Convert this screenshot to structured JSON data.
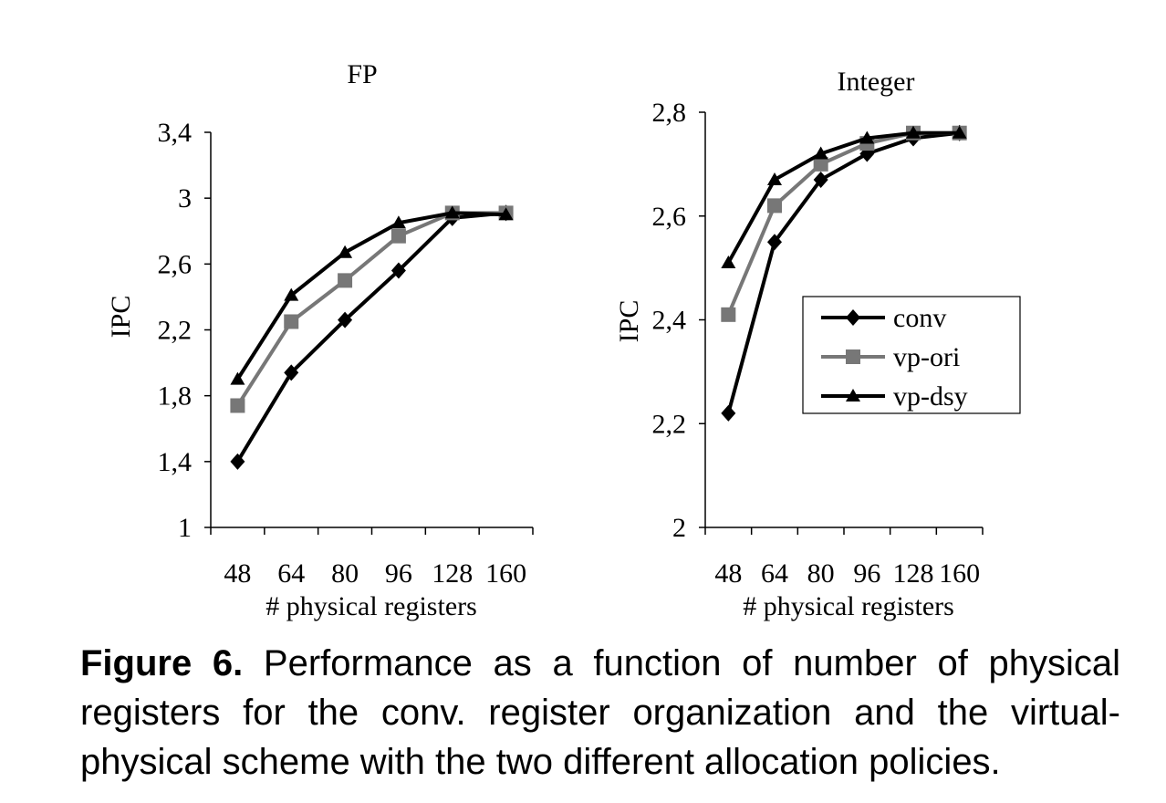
{
  "chart_data": [
    {
      "type": "line",
      "title": "FP",
      "xlabel": "# physical registers",
      "ylabel": "IPC",
      "categories": [
        "48",
        "64",
        "80",
        "96",
        "128",
        "160"
      ],
      "ylim": [
        1,
        3.4
      ],
      "yticks": [
        "1",
        "1,4",
        "1,8",
        "2,2",
        "2,6",
        "3",
        "3,4"
      ],
      "ytick_values": [
        1,
        1.4,
        1.8,
        2.2,
        2.6,
        3.0,
        3.4
      ],
      "grid": false,
      "series": [
        {
          "name": "conv",
          "values": [
            1.4,
            1.94,
            2.26,
            2.56,
            2.88,
            2.91
          ],
          "color": "#000000",
          "marker": "diamond"
        },
        {
          "name": "vp-ori",
          "values": [
            1.74,
            2.25,
            2.5,
            2.77,
            2.91,
            2.91
          ],
          "color": "#777777",
          "marker": "square"
        },
        {
          "name": "vp-dsy",
          "values": [
            1.9,
            2.41,
            2.67,
            2.85,
            2.91,
            2.9
          ],
          "color": "#000000",
          "marker": "triangle"
        }
      ]
    },
    {
      "type": "line",
      "title": "Integer",
      "xlabel": "# physical registers",
      "ylabel": "IPC",
      "categories": [
        "48",
        "64",
        "80",
        "96",
        "128",
        "160"
      ],
      "ylim": [
        2,
        2.8
      ],
      "yticks": [
        "2",
        "2,2",
        "2,4",
        "2,6",
        "2,8"
      ],
      "ytick_values": [
        2.0,
        2.2,
        2.4,
        2.6,
        2.8
      ],
      "grid": false,
      "legend_position": "center-right",
      "series": [
        {
          "name": "conv",
          "values": [
            2.22,
            2.55,
            2.67,
            2.72,
            2.75,
            2.76
          ],
          "color": "#000000",
          "marker": "diamond"
        },
        {
          "name": "vp-ori",
          "values": [
            2.41,
            2.62,
            2.7,
            2.74,
            2.76,
            2.76
          ],
          "color": "#777777",
          "marker": "square"
        },
        {
          "name": "vp-dsy",
          "values": [
            2.51,
            2.67,
            2.72,
            2.75,
            2.76,
            2.76
          ],
          "color": "#000000",
          "marker": "triangle"
        }
      ]
    }
  ],
  "caption": {
    "label": "Figure 6.",
    "text": " Performance as a function of number of physical registers for the conv. register organization and the virtual-physical scheme with the two different allocation policies."
  }
}
